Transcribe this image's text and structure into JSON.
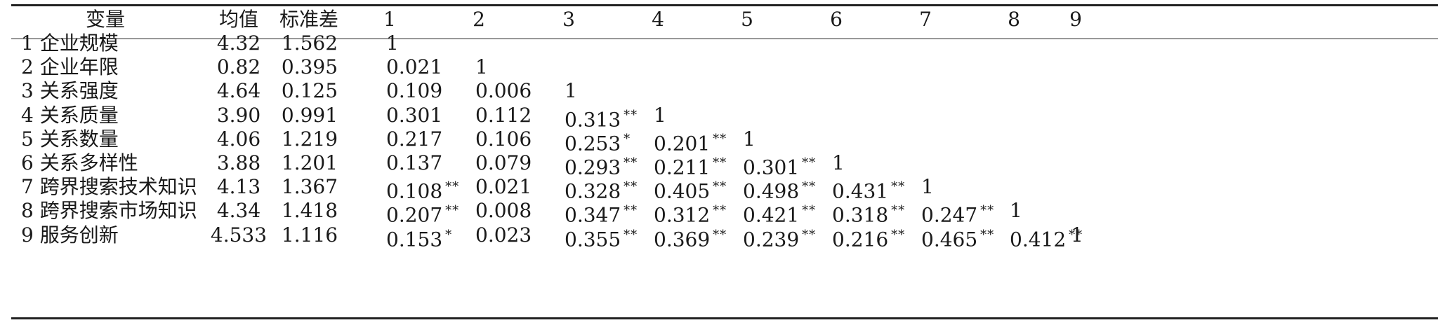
{
  "table": {
    "headers": [
      "变量",
      "均值",
      "标准差",
      "1",
      "2",
      "3",
      "4",
      "5",
      "6",
      "7",
      "8",
      "9"
    ],
    "rows": [
      {
        "var": "1 企业规模",
        "mean": "4.32",
        "sd": "1.562",
        "corr": [
          {
            "v": "1",
            "s": ""
          }
        ]
      },
      {
        "var": "2 企业年限",
        "mean": "0.82",
        "sd": "0.395",
        "corr": [
          {
            "v": "0.021",
            "s": ""
          },
          {
            "v": "1",
            "s": ""
          }
        ]
      },
      {
        "var": "3 关系强度",
        "mean": "4.64",
        "sd": "0.125",
        "corr": [
          {
            "v": "0.109",
            "s": ""
          },
          {
            "v": "0.006",
            "s": ""
          },
          {
            "v": "1",
            "s": ""
          }
        ]
      },
      {
        "var": "4 关系质量",
        "mean": "3.90",
        "sd": "0.991",
        "corr": [
          {
            "v": "0.301",
            "s": ""
          },
          {
            "v": "0.112",
            "s": ""
          },
          {
            "v": "0.313",
            "s": "**"
          },
          {
            "v": "1",
            "s": ""
          }
        ]
      },
      {
        "var": "5 关系数量",
        "mean": "4.06",
        "sd": "1.219",
        "corr": [
          {
            "v": "0.217",
            "s": ""
          },
          {
            "v": "0.106",
            "s": ""
          },
          {
            "v": "0.253",
            "s": "*"
          },
          {
            "v": "0.201",
            "s": "**"
          },
          {
            "v": "1",
            "s": ""
          }
        ]
      },
      {
        "var": "6 关系多样性",
        "mean": "3.88",
        "sd": "1.201",
        "corr": [
          {
            "v": "0.137",
            "s": ""
          },
          {
            "v": "0.079",
            "s": ""
          },
          {
            "v": "0.293",
            "s": "**"
          },
          {
            "v": "0.211",
            "s": "**"
          },
          {
            "v": "0.301",
            "s": "**"
          },
          {
            "v": "1",
            "s": ""
          }
        ]
      },
      {
        "var": "7 跨界搜索技术知识",
        "mean": "4.13",
        "sd": "1.367",
        "corr": [
          {
            "v": "0.108",
            "s": "**"
          },
          {
            "v": "0.021",
            "s": ""
          },
          {
            "v": "0.328",
            "s": "**"
          },
          {
            "v": "0.405",
            "s": "**"
          },
          {
            "v": "0.498",
            "s": "**"
          },
          {
            "v": "0.431",
            "s": "**"
          },
          {
            "v": "1",
            "s": ""
          }
        ]
      },
      {
        "var": "8 跨界搜索市场知识",
        "mean": "4.34",
        "sd": "1.418",
        "corr": [
          {
            "v": "0.207",
            "s": "**"
          },
          {
            "v": "0.008",
            "s": ""
          },
          {
            "v": "0.347",
            "s": "**"
          },
          {
            "v": "0.312",
            "s": "**"
          },
          {
            "v": "0.421",
            "s": "**"
          },
          {
            "v": "0.318",
            "s": "**"
          },
          {
            "v": "0.247",
            "s": "**"
          },
          {
            "v": "1",
            "s": ""
          }
        ]
      },
      {
        "var": "9 服务创新",
        "mean": "4.533",
        "sd": "1.116",
        "corr": [
          {
            "v": "0.153",
            "s": "*"
          },
          {
            "v": "0.023",
            "s": ""
          },
          {
            "v": "0.355",
            "s": "**"
          },
          {
            "v": "0.369",
            "s": "**"
          },
          {
            "v": "0.239",
            "s": "**"
          },
          {
            "v": "0.216",
            "s": "**"
          },
          {
            "v": "0.465",
            "s": "**"
          },
          {
            "v": "0.412",
            "s": "**"
          },
          {
            "v": "1",
            "s": ""
          }
        ]
      }
    ]
  }
}
